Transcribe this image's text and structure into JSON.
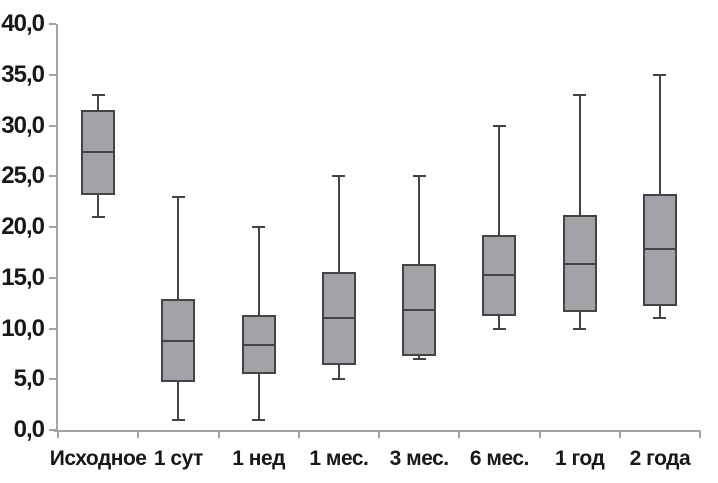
{
  "chart_data": {
    "type": "boxplot",
    "title": "",
    "xlabel": "",
    "ylabel": "",
    "categories": [
      "Исходное",
      "1 сут",
      "1 нед",
      "1 мес.",
      "3 мес.",
      "6 мес.",
      "1 год",
      "2 года"
    ],
    "series": [
      {
        "name": "boxes",
        "boxes": [
          {
            "min": 21.0,
            "q1": 23.2,
            "median": 27.4,
            "q3": 31.5,
            "max": 33.0
          },
          {
            "min": 1.0,
            "q1": 4.7,
            "median": 8.8,
            "q3": 12.9,
            "max": 23.0
          },
          {
            "min": 1.0,
            "q1": 5.5,
            "median": 8.4,
            "q3": 11.3,
            "max": 20.0
          },
          {
            "min": 5.0,
            "q1": 6.4,
            "median": 11.0,
            "q3": 15.6,
            "max": 25.0
          },
          {
            "min": 7.0,
            "q1": 7.3,
            "median": 11.8,
            "q3": 16.4,
            "max": 25.0
          },
          {
            "min": 10.0,
            "q1": 11.2,
            "median": 15.3,
            "q3": 19.2,
            "max": 30.0
          },
          {
            "min": 10.0,
            "q1": 11.6,
            "median": 16.4,
            "q3": 21.2,
            "max": 33.0
          },
          {
            "min": 11.0,
            "q1": 12.2,
            "median": 17.8,
            "q3": 23.3,
            "max": 35.0
          }
        ]
      }
    ],
    "ylim": [
      0,
      40
    ],
    "yticks": [
      0,
      5,
      10,
      15,
      20,
      25,
      30,
      35,
      40
    ],
    "ytick_labels": [
      "0,0",
      "5,0",
      "10,0",
      "15,0",
      "20,0",
      "25,0",
      "30,0",
      "35,0",
      "40,0"
    ],
    "grid": false,
    "legend": null,
    "colors": {
      "box_fill": "#a2a3a6",
      "box_border": "#434447",
      "median": "#434447",
      "whisker": "#434447",
      "axis": "#a3a4a6",
      "text": "#17181c",
      "background": "#ffffff"
    }
  }
}
